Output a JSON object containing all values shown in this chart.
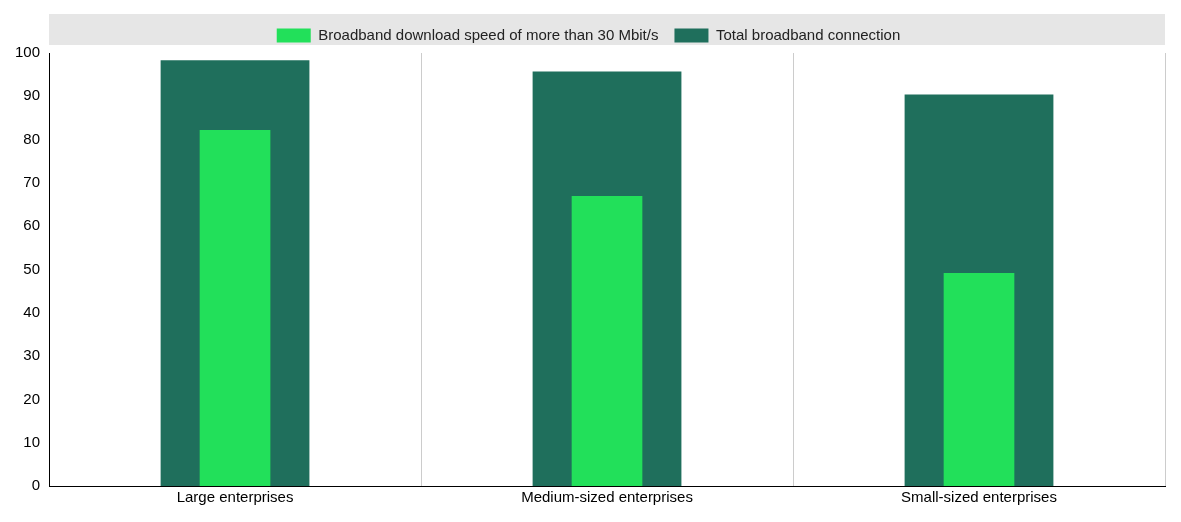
{
  "chart_data": {
    "type": "bar",
    "categories": [
      "Large enterprises",
      "Medium-sized enterprises",
      "Small-sized enterprises"
    ],
    "series": [
      {
        "name": "Total broadband connection",
        "color": "#1f6f5c",
        "values": [
          98.3,
          95.7,
          90.4
        ]
      },
      {
        "name": "Broadband download speed of more than 30 Mbit/s",
        "color": "#22e05a",
        "values": [
          82.2,
          67.0,
          49.2
        ]
      }
    ],
    "ylim": [
      0,
      100
    ],
    "yticks": [
      0,
      10,
      20,
      30,
      40,
      50,
      60,
      70,
      80,
      90,
      100
    ],
    "grid": "x",
    "legend": "top"
  }
}
